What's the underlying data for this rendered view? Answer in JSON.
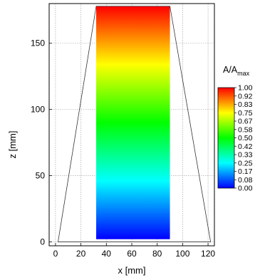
{
  "chart_data": {
    "type": "heatmap",
    "xlabel": "x [mm]",
    "ylabel": "z [mm]",
    "xlim": [
      -5,
      125
    ],
    "ylim": [
      -3,
      180
    ],
    "xticks": [
      "0",
      "20",
      "40",
      "60",
      "80",
      "100",
      "120"
    ],
    "yticks": [
      "0",
      "50",
      "100",
      "150"
    ],
    "grid": true,
    "region": {
      "x_range": [
        32,
        90
      ],
      "z_range": [
        2,
        178
      ]
    },
    "outline": [
      [
        2,
        0
      ],
      [
        32,
        178
      ],
      [
        90,
        178
      ],
      [
        122,
        0
      ]
    ],
    "colorbar": {
      "title_main": "A/A",
      "title_sub": "max",
      "ticks": [
        "1.00",
        "0.92",
        "0.83",
        "0.75",
        "0.67",
        "0.58",
        "0.50",
        "0.42",
        "0.33",
        "0.25",
        "0.17",
        "0.08",
        "0.00"
      ],
      "colors": [
        "#0000ff",
        "#0080ff",
        "#00ffff",
        "#00ff80",
        "#00ff00",
        "#80ff00",
        "#ffff00",
        "#ff8000",
        "#ff0000"
      ]
    }
  }
}
